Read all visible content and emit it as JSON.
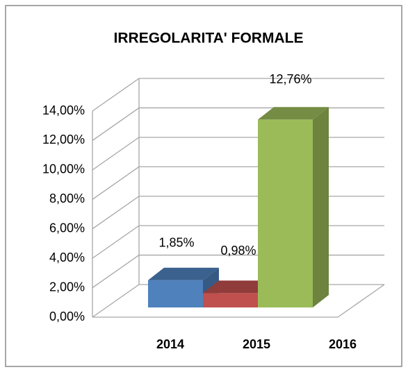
{
  "chart_data": {
    "type": "bar3d",
    "title": "IRREGOLARITA' FORMALE",
    "categories": [
      "2014",
      "2015",
      "2016"
    ],
    "values": [
      1.85,
      0.98,
      12.76
    ],
    "value_labels": [
      "1,85%",
      "0,98%",
      "12,76%"
    ],
    "colors": [
      "#4f81bd",
      "#c0504d",
      "#9bbb59"
    ],
    "ylim": [
      0,
      14
    ],
    "yticks": [
      {
        "value": 0,
        "label": "0,00%"
      },
      {
        "value": 2,
        "label": "2,00%"
      },
      {
        "value": 4,
        "label": "4,00%"
      },
      {
        "value": 6,
        "label": "6,00%"
      },
      {
        "value": 8,
        "label": "8,00%"
      },
      {
        "value": 10,
        "label": "10,00%"
      },
      {
        "value": 12,
        "label": "12,00%"
      },
      {
        "value": 14,
        "label": "14,00%"
      }
    ],
    "grid": true
  }
}
